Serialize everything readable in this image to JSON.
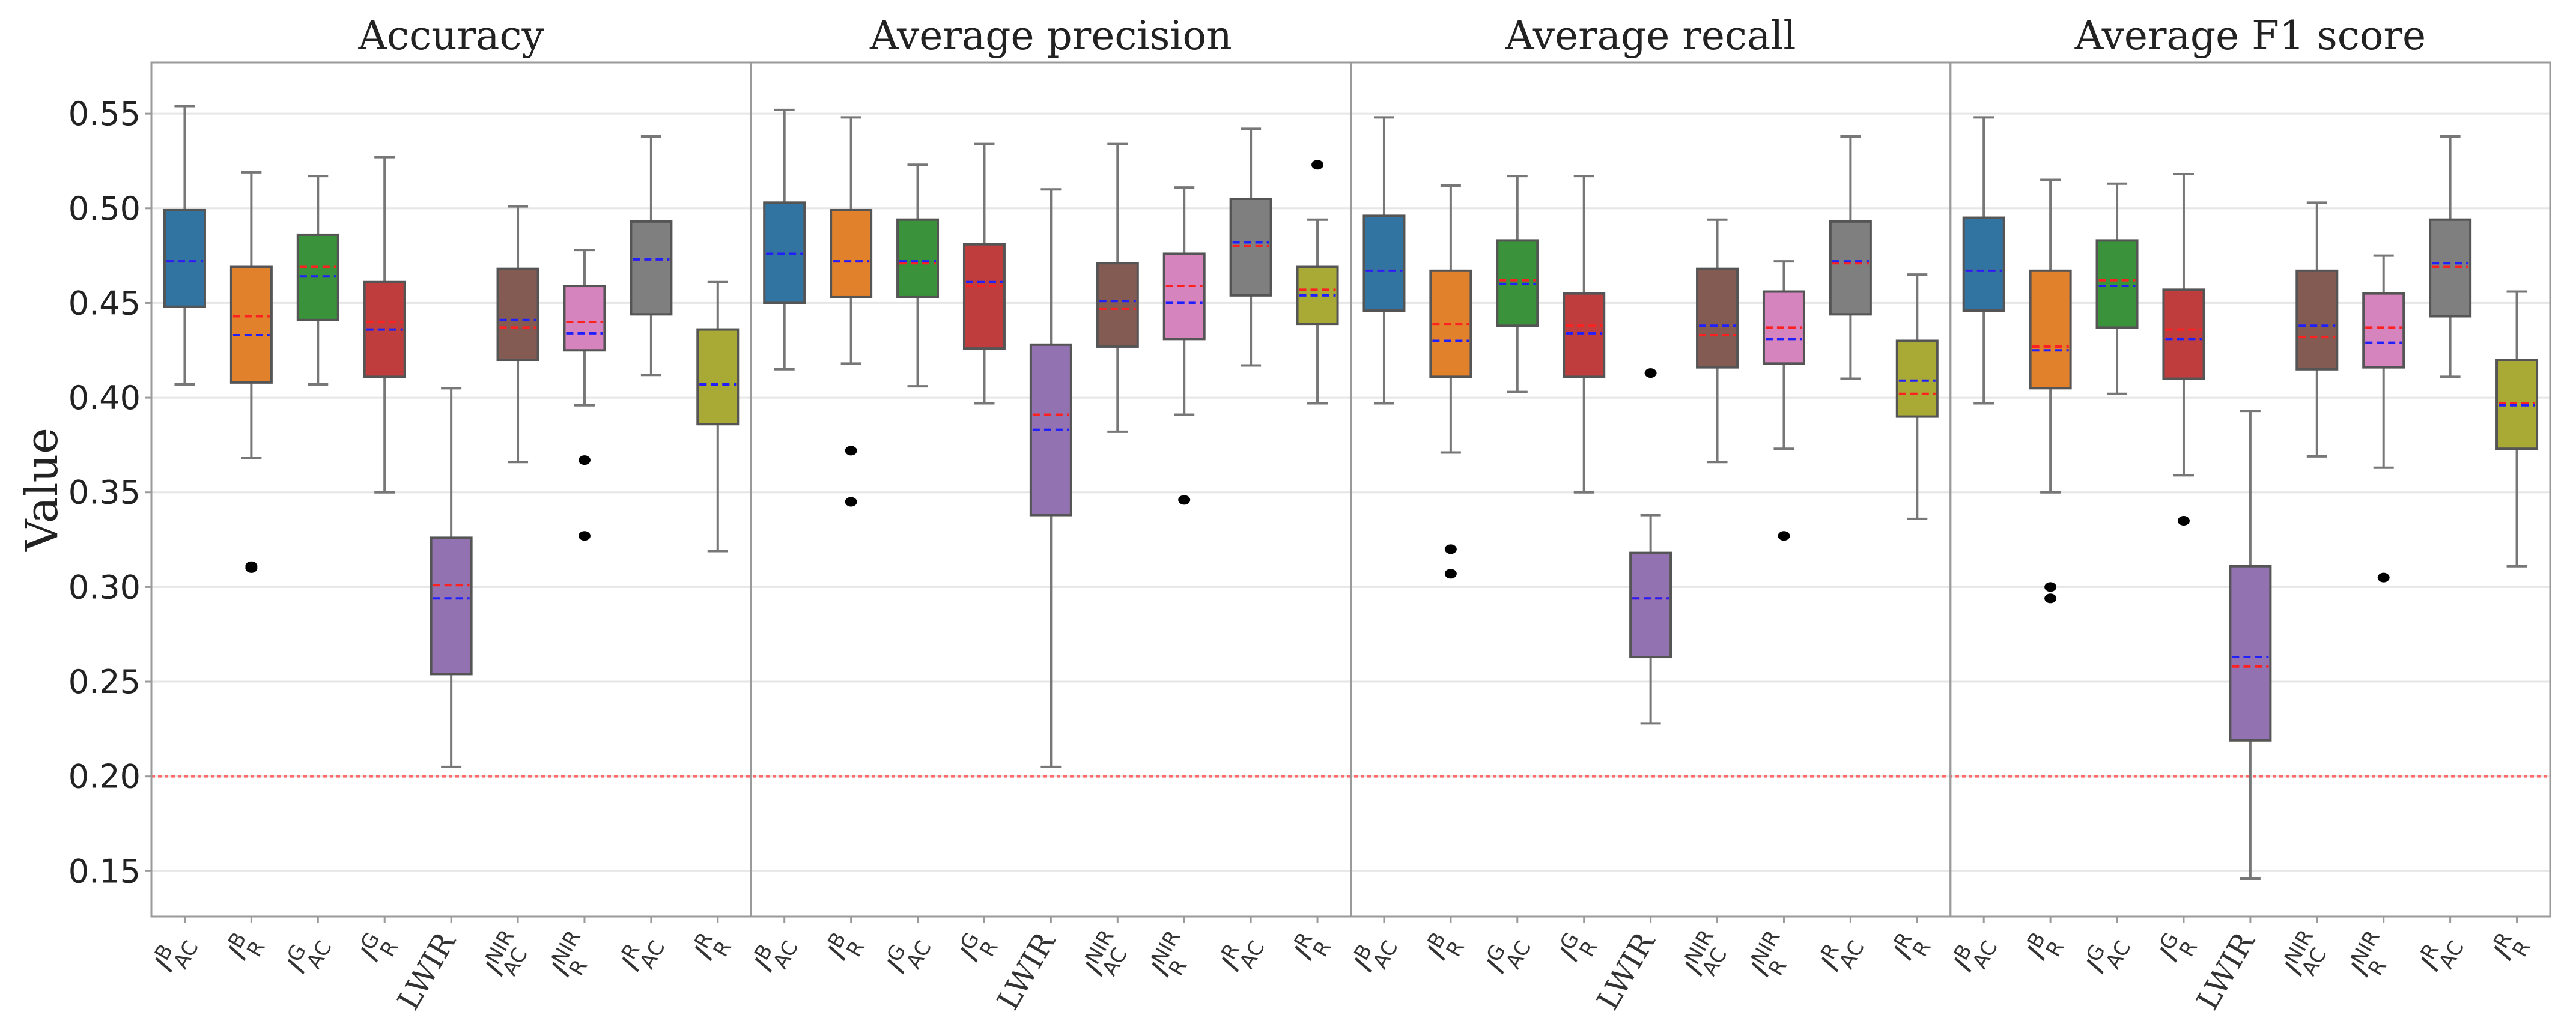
{
  "chart_data": {
    "type": "box",
    "ylabel": "Value",
    "ylim": [
      0.126,
      0.577
    ],
    "yticks": [
      "0.15",
      "0.20",
      "0.25",
      "0.30",
      "0.35",
      "0.40",
      "0.45",
      "0.50",
      "0.55"
    ],
    "ytick_values": [
      0.15,
      0.2,
      0.25,
      0.3,
      0.35,
      0.4,
      0.45,
      0.5,
      0.55
    ],
    "grid": "horizontal",
    "reference_line": {
      "value": 0.2,
      "color": "#ff6b6b",
      "style": "dotted"
    },
    "median_color": "#ff2020",
    "mean_color": "#2020ff",
    "categories": [
      {
        "base": "I",
        "sup": "B",
        "sub": "AC"
      },
      {
        "base": "I",
        "sup": "B",
        "sub": "R"
      },
      {
        "base": "I",
        "sup": "G",
        "sub": "AC"
      },
      {
        "base": "I",
        "sup": "G",
        "sub": "R"
      },
      {
        "base": "LWIR",
        "sup": "",
        "sub": ""
      },
      {
        "base": "I",
        "sup": "NIR",
        "sub": "AC"
      },
      {
        "base": "I",
        "sup": "NIR",
        "sub": "R"
      },
      {
        "base": "I",
        "sup": "R",
        "sub": "AC"
      },
      {
        "base": "I",
        "sup": "R",
        "sub": "R"
      }
    ],
    "colors": [
      "#3274a1",
      "#e1812c",
      "#3a923a",
      "#c03d3e",
      "#9372b2",
      "#845b53",
      "#d684bd",
      "#7f7f7f",
      "#a9aa35"
    ],
    "panels": [
      {
        "title": "Accuracy",
        "boxes": [
          {
            "whislo": 0.407,
            "q1": 0.448,
            "median": 0.472,
            "mean": 0.472,
            "q3": 0.499,
            "whishi": 0.554,
            "fliers": []
          },
          {
            "whislo": 0.368,
            "q1": 0.408,
            "median": 0.443,
            "mean": 0.433,
            "q3": 0.469,
            "whishi": 0.519,
            "fliers": [
              0.31,
              0.311
            ]
          },
          {
            "whislo": 0.407,
            "q1": 0.441,
            "median": 0.469,
            "mean": 0.464,
            "q3": 0.486,
            "whishi": 0.517,
            "fliers": []
          },
          {
            "whislo": 0.35,
            "q1": 0.411,
            "median": 0.44,
            "mean": 0.436,
            "q3": 0.461,
            "whishi": 0.527,
            "fliers": []
          },
          {
            "whislo": 0.205,
            "q1": 0.254,
            "median": 0.301,
            "mean": 0.294,
            "q3": 0.326,
            "whishi": 0.405,
            "fliers": []
          },
          {
            "whislo": 0.366,
            "q1": 0.42,
            "median": 0.437,
            "mean": 0.441,
            "q3": 0.468,
            "whishi": 0.501,
            "fliers": []
          },
          {
            "whislo": 0.396,
            "q1": 0.425,
            "median": 0.44,
            "mean": 0.434,
            "q3": 0.459,
            "whishi": 0.478,
            "fliers": [
              0.367,
              0.327
            ]
          },
          {
            "whislo": 0.412,
            "q1": 0.444,
            "median": 0.473,
            "mean": 0.473,
            "q3": 0.493,
            "whishi": 0.538,
            "fliers": []
          },
          {
            "whislo": 0.319,
            "q1": 0.386,
            "median": 0.407,
            "mean": 0.407,
            "q3": 0.436,
            "whishi": 0.461,
            "fliers": []
          }
        ]
      },
      {
        "title": "Average precision",
        "boxes": [
          {
            "whislo": 0.415,
            "q1": 0.45,
            "median": 0.476,
            "mean": 0.476,
            "q3": 0.503,
            "whishi": 0.552,
            "fliers": []
          },
          {
            "whislo": 0.418,
            "q1": 0.453,
            "median": 0.472,
            "mean": 0.472,
            "q3": 0.499,
            "whishi": 0.548,
            "fliers": [
              0.372,
              0.345
            ]
          },
          {
            "whislo": 0.406,
            "q1": 0.453,
            "median": 0.471,
            "mean": 0.472,
            "q3": 0.494,
            "whishi": 0.523,
            "fliers": []
          },
          {
            "whislo": 0.397,
            "q1": 0.426,
            "median": 0.459,
            "mean": 0.461,
            "q3": 0.481,
            "whishi": 0.534,
            "fliers": []
          },
          {
            "whislo": 0.205,
            "q1": 0.338,
            "median": 0.391,
            "mean": 0.383,
            "q3": 0.428,
            "whishi": 0.51,
            "fliers": []
          },
          {
            "whislo": 0.382,
            "q1": 0.427,
            "median": 0.447,
            "mean": 0.451,
            "q3": 0.471,
            "whishi": 0.534,
            "fliers": []
          },
          {
            "whislo": 0.391,
            "q1": 0.431,
            "median": 0.459,
            "mean": 0.45,
            "q3": 0.476,
            "whishi": 0.511,
            "fliers": [
              0.346
            ]
          },
          {
            "whislo": 0.417,
            "q1": 0.454,
            "median": 0.48,
            "mean": 0.482,
            "q3": 0.505,
            "whishi": 0.542,
            "fliers": []
          },
          {
            "whislo": 0.397,
            "q1": 0.439,
            "median": 0.457,
            "mean": 0.454,
            "q3": 0.469,
            "whishi": 0.494,
            "fliers": [
              0.523
            ]
          }
        ]
      },
      {
        "title": "Average recall",
        "boxes": [
          {
            "whislo": 0.397,
            "q1": 0.446,
            "median": 0.467,
            "mean": 0.467,
            "q3": 0.496,
            "whishi": 0.548,
            "fliers": []
          },
          {
            "whislo": 0.371,
            "q1": 0.411,
            "median": 0.439,
            "mean": 0.43,
            "q3": 0.467,
            "whishi": 0.512,
            "fliers": [
              0.32,
              0.307
            ]
          },
          {
            "whislo": 0.403,
            "q1": 0.438,
            "median": 0.462,
            "mean": 0.46,
            "q3": 0.483,
            "whishi": 0.517,
            "fliers": []
          },
          {
            "whislo": 0.35,
            "q1": 0.411,
            "median": 0.438,
            "mean": 0.434,
            "q3": 0.455,
            "whishi": 0.517,
            "fliers": []
          },
          {
            "whislo": 0.228,
            "q1": 0.263,
            "median": 0.294,
            "mean": 0.294,
            "q3": 0.318,
            "whishi": 0.338,
            "fliers": [
              0.413
            ]
          },
          {
            "whislo": 0.366,
            "q1": 0.416,
            "median": 0.433,
            "mean": 0.438,
            "q3": 0.468,
            "whishi": 0.494,
            "fliers": []
          },
          {
            "whislo": 0.373,
            "q1": 0.418,
            "median": 0.437,
            "mean": 0.431,
            "q3": 0.456,
            "whishi": 0.472,
            "fliers": [
              0.327
            ]
          },
          {
            "whislo": 0.41,
            "q1": 0.444,
            "median": 0.471,
            "mean": 0.472,
            "q3": 0.493,
            "whishi": 0.538,
            "fliers": []
          },
          {
            "whislo": 0.336,
            "q1": 0.39,
            "median": 0.402,
            "mean": 0.409,
            "q3": 0.43,
            "whishi": 0.465,
            "fliers": []
          }
        ]
      },
      {
        "title": "Average F1 score",
        "boxes": [
          {
            "whislo": 0.397,
            "q1": 0.446,
            "median": 0.467,
            "mean": 0.467,
            "q3": 0.495,
            "whishi": 0.548,
            "fliers": []
          },
          {
            "whislo": 0.35,
            "q1": 0.405,
            "median": 0.427,
            "mean": 0.425,
            "q3": 0.467,
            "whishi": 0.515,
            "fliers": [
              0.3,
              0.294
            ]
          },
          {
            "whislo": 0.402,
            "q1": 0.437,
            "median": 0.462,
            "mean": 0.459,
            "q3": 0.483,
            "whishi": 0.513,
            "fliers": []
          },
          {
            "whislo": 0.359,
            "q1": 0.41,
            "median": 0.436,
            "mean": 0.431,
            "q3": 0.457,
            "whishi": 0.518,
            "fliers": [
              0.335
            ]
          },
          {
            "whislo": 0.146,
            "q1": 0.219,
            "median": 0.258,
            "mean": 0.263,
            "q3": 0.311,
            "whishi": 0.393,
            "fliers": []
          },
          {
            "whislo": 0.369,
            "q1": 0.415,
            "median": 0.432,
            "mean": 0.438,
            "q3": 0.467,
            "whishi": 0.503,
            "fliers": []
          },
          {
            "whislo": 0.363,
            "q1": 0.416,
            "median": 0.437,
            "mean": 0.429,
            "q3": 0.455,
            "whishi": 0.475,
            "fliers": [
              0.305
            ]
          },
          {
            "whislo": 0.411,
            "q1": 0.443,
            "median": 0.469,
            "mean": 0.471,
            "q3": 0.494,
            "whishi": 0.538,
            "fliers": []
          },
          {
            "whislo": 0.311,
            "q1": 0.373,
            "median": 0.397,
            "mean": 0.396,
            "q3": 0.42,
            "whishi": 0.456,
            "fliers": []
          }
        ]
      }
    ]
  }
}
